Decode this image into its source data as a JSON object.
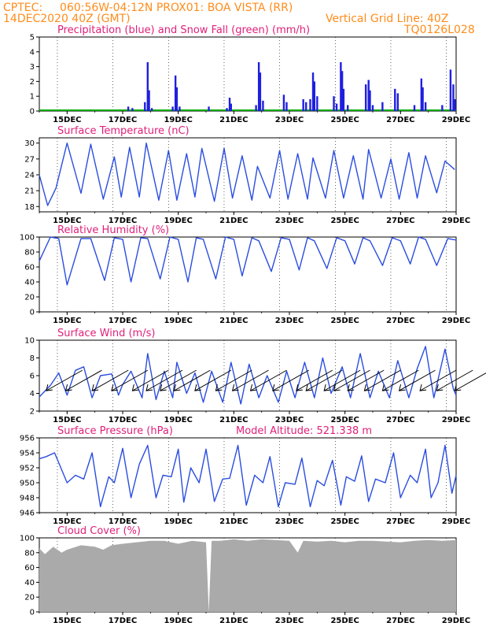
{
  "header": {
    "line1_left": "CPTEC:",
    "line1_mid": "060:56W-04:12N  PROX01: BOA VISTA (RR)",
    "line2_left": "14DEC2020 40Z (GMT)",
    "line2_right": "Vertical Grid Line: 40Z",
    "line3_right": "TQ0126L028"
  },
  "colors": {
    "header": "#ff8c1a",
    "title": "#e0207a",
    "precip": "#1f1fe0",
    "snow": "#00aa00",
    "line": "#2a4de0",
    "cloud": "#aaaaaa",
    "wind": "#000000"
  },
  "x_axis": {
    "labels": [
      "15DEC",
      "17DEC",
      "19DEC",
      "21DEC",
      "23DEC",
      "25DEC",
      "27DEC",
      "29DEC"
    ]
  },
  "chart_data": [
    {
      "type": "bar",
      "title": "Precipitation (blue) and Snow Fall (green) (mm/h)",
      "ylim": [
        0,
        5
      ],
      "yticks": [
        "0",
        "1",
        "2",
        "3",
        "4",
        "5"
      ],
      "grid": "vertical dashed",
      "series": [
        {
          "name": "Precipitation",
          "values": [
            {
              "x": 17.2,
              "y": 0.3
            },
            {
              "x": 17.35,
              "y": 0.2
            },
            {
              "x": 17.8,
              "y": 0.6
            },
            {
              "x": 17.9,
              "y": 3.3
            },
            {
              "x": 17.95,
              "y": 1.4
            },
            {
              "x": 18.05,
              "y": 0.2
            },
            {
              "x": 18.8,
              "y": 0.3
            },
            {
              "x": 18.9,
              "y": 2.4
            },
            {
              "x": 18.95,
              "y": 1.6
            },
            {
              "x": 19.05,
              "y": 0.3
            },
            {
              "x": 20.1,
              "y": 0.3
            },
            {
              "x": 20.75,
              "y": 0.2
            },
            {
              "x": 20.85,
              "y": 0.9
            },
            {
              "x": 20.9,
              "y": 0.5
            },
            {
              "x": 21.8,
              "y": 0.4
            },
            {
              "x": 21.9,
              "y": 3.3
            },
            {
              "x": 21.95,
              "y": 2.6
            },
            {
              "x": 22.05,
              "y": 0.7
            },
            {
              "x": 22.8,
              "y": 1.1
            },
            {
              "x": 22.9,
              "y": 0.6
            },
            {
              "x": 23.5,
              "y": 0.8
            },
            {
              "x": 23.6,
              "y": 0.6
            },
            {
              "x": 23.75,
              "y": 0.8
            },
            {
              "x": 23.85,
              "y": 2.6
            },
            {
              "x": 23.9,
              "y": 2.0
            },
            {
              "x": 24.0,
              "y": 1.0
            },
            {
              "x": 24.6,
              "y": 1.0
            },
            {
              "x": 24.7,
              "y": 0.5
            },
            {
              "x": 24.85,
              "y": 3.3
            },
            {
              "x": 24.9,
              "y": 2.7
            },
            {
              "x": 24.95,
              "y": 1.5
            },
            {
              "x": 25.1,
              "y": 0.4
            },
            {
              "x": 25.75,
              "y": 1.8
            },
            {
              "x": 25.85,
              "y": 2.1
            },
            {
              "x": 25.9,
              "y": 1.4
            },
            {
              "x": 26.0,
              "y": 0.4
            },
            {
              "x": 26.35,
              "y": 0.6
            },
            {
              "x": 26.8,
              "y": 1.5
            },
            {
              "x": 26.9,
              "y": 1.2
            },
            {
              "x": 27.5,
              "y": 0.4
            },
            {
              "x": 27.75,
              "y": 2.2
            },
            {
              "x": 27.8,
              "y": 1.6
            },
            {
              "x": 27.9,
              "y": 0.6
            },
            {
              "x": 28.5,
              "y": 0.4
            },
            {
              "x": 28.8,
              "y": 2.8
            },
            {
              "x": 28.9,
              "y": 1.8
            },
            {
              "x": 28.95,
              "y": 0.8
            }
          ]
        },
        {
          "name": "Snow Fall",
          "values": []
        }
      ]
    },
    {
      "type": "line",
      "title": "Surface Temperature (nC)",
      "ylim": [
        17,
        31
      ],
      "yticks": [
        "18",
        "21",
        "24",
        "27",
        "30"
      ],
      "grid": "vertical dashed",
      "x": [
        14.0,
        14.3,
        14.6,
        15.0,
        15.5,
        15.85,
        16.3,
        16.7,
        16.95,
        17.25,
        17.6,
        17.85,
        18.3,
        18.65,
        18.95,
        19.3,
        19.6,
        19.85,
        20.3,
        20.65,
        20.95,
        21.3,
        21.65,
        21.85,
        22.3,
        22.65,
        22.95,
        23.3,
        23.65,
        23.85,
        24.3,
        24.6,
        24.95,
        25.3,
        25.65,
        25.85,
        26.3,
        26.65,
        26.95,
        27.3,
        27.6,
        27.9,
        28.3,
        28.6,
        28.95
      ],
      "values": [
        24,
        18.2,
        21.5,
        30.0,
        20.5,
        29.8,
        19.4,
        27.4,
        19.8,
        29.2,
        19.8,
        30.0,
        19.2,
        28.6,
        19.2,
        28.0,
        19.8,
        29.0,
        19.0,
        29.0,
        19.6,
        27.6,
        19.2,
        25.6,
        19.6,
        28.6,
        19.4,
        28.0,
        19.4,
        27.2,
        19.6,
        28.6,
        19.6,
        27.6,
        19.4,
        28.8,
        19.6,
        27.0,
        19.4,
        28.2,
        19.6,
        27.6,
        20.6,
        26.6,
        25.0
      ]
    },
    {
      "type": "line",
      "title": "Relative Humidity (%)",
      "ylim": [
        0,
        100
      ],
      "yticks": [
        "0",
        "20",
        "40",
        "60",
        "80",
        "100"
      ],
      "grid": "vertical dashed",
      "x": [
        14.0,
        14.4,
        14.7,
        15.0,
        15.5,
        15.85,
        16.35,
        16.7,
        17.0,
        17.3,
        17.65,
        17.9,
        18.35,
        18.7,
        19.0,
        19.35,
        19.65,
        19.9,
        20.35,
        20.7,
        21.0,
        21.3,
        21.65,
        21.9,
        22.35,
        22.7,
        23.0,
        23.35,
        23.65,
        23.9,
        24.35,
        24.7,
        25.0,
        25.35,
        25.65,
        25.9,
        26.35,
        26.7,
        27.0,
        27.35,
        27.65,
        27.9,
        28.3,
        28.7,
        29.0
      ],
      "values": [
        68,
        100,
        98,
        36,
        98,
        98,
        42,
        99,
        97,
        40,
        99,
        98,
        44,
        100,
        97,
        40,
        99,
        97,
        44,
        100,
        97,
        48,
        99,
        95,
        54,
        99,
        97,
        56,
        99,
        95,
        58,
        99,
        95,
        64,
        99,
        95,
        62,
        99,
        95,
        64,
        100,
        97,
        62,
        98,
        96
      ]
    },
    {
      "type": "line",
      "title": "Surface Wind (m/s)",
      "ylim": [
        2,
        10
      ],
      "yticks": [
        "2",
        "4",
        "6",
        "8",
        "10"
      ],
      "grid": "vertical dashed",
      "x": [
        14.0,
        14.4,
        14.7,
        15.0,
        15.3,
        15.6,
        15.9,
        16.2,
        16.6,
        16.85,
        17.0,
        17.3,
        17.7,
        17.9,
        18.2,
        18.5,
        18.8,
        18.95,
        19.3,
        19.6,
        19.9,
        20.2,
        20.6,
        20.9,
        21.25,
        21.55,
        21.9,
        22.2,
        22.6,
        22.9,
        23.2,
        23.55,
        23.9,
        24.2,
        24.5,
        24.9,
        25.2,
        25.55,
        25.9,
        26.2,
        26.6,
        26.9,
        27.3,
        27.6,
        27.9,
        28.2,
        28.6,
        28.9,
        29.0
      ],
      "values": [
        3.6,
        4.9,
        6.3,
        3.8,
        6.6,
        7.0,
        3.5,
        6.0,
        6.2,
        3.8,
        5.0,
        6.5,
        3.5,
        8.5,
        3.3,
        6.5,
        3.5,
        7.5,
        4.0,
        6.3,
        3.0,
        6.5,
        3.0,
        7.5,
        2.8,
        7.3,
        3.5,
        6.0,
        3.0,
        6.5,
        3.5,
        7.5,
        3.5,
        8.0,
        4.0,
        7.0,
        3.5,
        8.5,
        3.5,
        6.5,
        3.5,
        7.7,
        3.5,
        6.8,
        9.3,
        3.5,
        9.0,
        4.5,
        3.8
      ],
      "arrow_x": [
        14.25,
        14.95,
        15.9,
        16.6,
        17.35,
        17.85,
        18.35,
        18.85,
        19.6,
        20.35,
        20.95,
        21.6,
        22.4,
        23.25,
        23.6,
        24.25,
        24.6,
        25.1,
        25.7,
        26.35,
        26.95,
        27.7,
        28.3,
        28.95
      ]
    },
    {
      "type": "line",
      "title": "Surface Pressure (hPa)",
      "annotation": "Model Altitude: 521.338  m",
      "ylim": [
        946,
        956
      ],
      "yticks": [
        "946",
        "948",
        "950",
        "952",
        "954",
        "956"
      ],
      "grid": "vertical dashed",
      "x": [
        14.0,
        14.25,
        14.55,
        15.0,
        15.3,
        15.6,
        15.9,
        16.2,
        16.5,
        16.7,
        17.0,
        17.3,
        17.6,
        17.9,
        18.2,
        18.45,
        18.75,
        19.0,
        19.2,
        19.45,
        19.75,
        20.0,
        20.3,
        20.6,
        20.85,
        21.15,
        21.45,
        21.75,
        22.05,
        22.3,
        22.6,
        22.85,
        23.2,
        23.45,
        23.75,
        24.0,
        24.25,
        24.55,
        24.85,
        25.05,
        25.35,
        25.6,
        25.85,
        26.1,
        26.45,
        26.75,
        27.0,
        27.35,
        27.6,
        27.9,
        28.1,
        28.35,
        28.6,
        28.85,
        29.0
      ],
      "values": [
        953.2,
        953.5,
        954.0,
        950.0,
        951.0,
        950.5,
        954.0,
        946.8,
        950.8,
        950.0,
        954.6,
        948.0,
        952.5,
        955.0,
        948.0,
        951.0,
        950.8,
        954.5,
        947.4,
        952.0,
        950.0,
        954.5,
        947.5,
        950.5,
        950.6,
        955.0,
        947.0,
        951.0,
        950.0,
        953.5,
        946.8,
        950.0,
        949.8,
        953.3,
        946.8,
        950.3,
        949.6,
        953.0,
        947.0,
        950.8,
        950.2,
        953.6,
        947.5,
        950.5,
        950.0,
        954.0,
        948.0,
        951.0,
        950.0,
        954.5,
        948.0,
        950.0,
        955.0,
        948.6,
        951.0
      ]
    },
    {
      "type": "area",
      "title": "Cloud Cover (%)",
      "ylim": [
        0,
        100
      ],
      "yticks": [
        "0",
        "20",
        "40",
        "60",
        "80",
        "100"
      ],
      "grid": "vertical dashed",
      "x": [
        14.0,
        14.2,
        14.5,
        14.8,
        15.0,
        15.5,
        16.0,
        16.3,
        16.6,
        17.0,
        17.5,
        18.0,
        18.5,
        19.0,
        19.5,
        20.0,
        20.1,
        20.2,
        20.5,
        21.0,
        21.5,
        22.0,
        22.5,
        23.0,
        23.3,
        23.5,
        24.0,
        24.5,
        25.0,
        25.5,
        26.0,
        26.5,
        27.0,
        27.5,
        28.0,
        28.5,
        29.0
      ],
      "values": [
        86,
        78,
        88,
        80,
        84,
        90,
        88,
        84,
        90,
        92,
        94,
        96,
        96,
        92,
        96,
        94,
        0,
        96,
        96,
        98,
        96,
        98,
        97,
        96,
        80,
        96,
        95,
        96,
        94,
        96,
        96,
        95,
        94,
        96,
        97,
        96,
        97
      ]
    }
  ]
}
